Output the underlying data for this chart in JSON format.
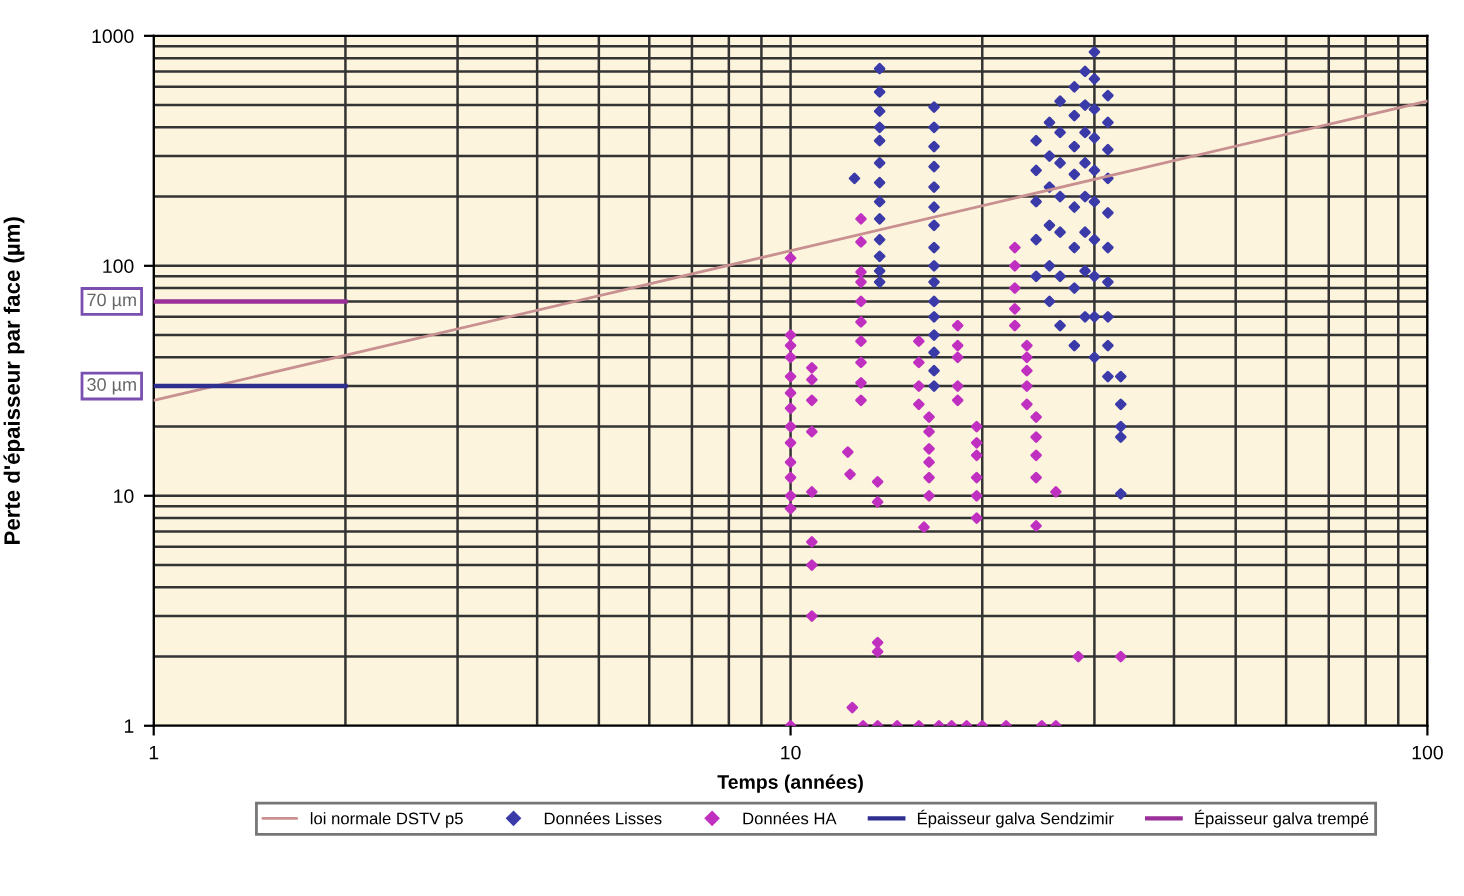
{
  "chart_data": {
    "type": "scatter",
    "xlabel": "Temps (années)",
    "ylabel": "Perte d'épaisseur par face (µm)",
    "log": "xy",
    "xlim": [
      1,
      100
    ],
    "ylim": [
      1,
      1000
    ],
    "xticks": [
      1,
      10,
      100
    ],
    "yticks": [
      1,
      10,
      100,
      1000
    ],
    "grid": true,
    "legend": "bottom",
    "annotations": [
      {
        "text": "70 µm",
        "x": 1,
        "y": 70
      },
      {
        "text": "30 µm",
        "x": 1,
        "y": 30
      }
    ],
    "series": [
      {
        "name": "loi normale DSTV p5",
        "type": "line",
        "color": "#c89090",
        "marker": "none",
        "x": [
          1,
          100
        ],
        "values": [
          26,
          520
        ]
      },
      {
        "name": "Données Lisses",
        "color": "#3a3aa8",
        "marker": "diamond",
        "x": [
          13.8,
          13.8,
          13.8,
          13.8,
          13.8,
          13.8,
          13.8,
          13.8,
          13.8,
          13.8,
          13.8,
          13.8,
          13.8,
          12.6,
          16.8,
          16.8,
          16.8,
          16.8,
          16.8,
          16.8,
          16.8,
          16.8,
          16.8,
          16.8,
          16.8,
          16.8,
          16.8,
          16.8,
          16.8,
          16.8,
          24.3,
          24.3,
          24.3,
          24.3,
          24.3,
          25.5,
          25.5,
          25.5,
          25.5,
          25.5,
          25.5,
          26.5,
          26.5,
          26.5,
          26.5,
          26.5,
          26.5,
          26.5,
          27.9,
          27.9,
          27.9,
          27.9,
          27.9,
          27.9,
          27.9,
          27.9,
          29,
          29,
          29,
          29,
          29,
          29,
          29,
          29,
          30,
          30,
          30,
          30,
          30,
          30,
          30,
          30,
          30,
          30,
          31.5,
          31.5,
          31.5,
          31.5,
          31.5,
          31.5,
          31.5,
          31.5,
          31.5,
          31.5,
          33,
          33,
          33,
          33,
          33
        ],
        "values": [
          720,
          570,
          470,
          400,
          350,
          280,
          230,
          190,
          160,
          130,
          110,
          95,
          85,
          240,
          490,
          400,
          330,
          270,
          220,
          180,
          150,
          120,
          100,
          85,
          70,
          60,
          50,
          42,
          35,
          30,
          350,
          260,
          190,
          130,
          90,
          420,
          300,
          220,
          150,
          100,
          70,
          520,
          380,
          280,
          200,
          140,
          90,
          55,
          600,
          450,
          330,
          250,
          180,
          120,
          80,
          45,
          700,
          500,
          380,
          280,
          200,
          140,
          95,
          60,
          850,
          650,
          480,
          360,
          260,
          190,
          130,
          90,
          60,
          40,
          550,
          420,
          320,
          240,
          170,
          120,
          85,
          60,
          45,
          33,
          33,
          25,
          20,
          18,
          10.2
        ]
      },
      {
        "name": "Données HA",
        "color": "#c030c0",
        "marker": "diamond",
        "x": [
          10,
          10,
          10,
          10,
          10,
          10,
          10,
          10,
          10,
          10,
          10,
          10,
          10,
          10,
          10.8,
          10.8,
          10.8,
          10.8,
          10.8,
          10.8,
          10.8,
          10.8,
          12.9,
          12.9,
          12.9,
          12.9,
          12.9,
          12.9,
          12.9,
          12.9,
          12.9,
          12.9,
          12.3,
          12.4,
          13.7,
          13.7,
          13.7,
          13.7,
          12.5,
          13,
          13.7,
          14.7,
          15.9,
          17.1,
          17.9,
          18.9,
          20,
          21.8,
          24.8,
          26.1,
          15.9,
          15.9,
          15.9,
          15.9,
          16.5,
          16.5,
          16.5,
          16.5,
          16.5,
          16.5,
          16.2,
          18.3,
          18.3,
          18.3,
          18.3,
          18.3,
          19.6,
          19.6,
          19.6,
          19.6,
          19.6,
          19.6,
          22.5,
          22.5,
          22.5,
          22.5,
          22.5,
          23.5,
          23.5,
          23.5,
          23.5,
          23.5,
          24.3,
          24.3,
          24.3,
          24.3,
          24.3,
          26.1,
          28.3,
          33
        ],
        "values": [
          108,
          50,
          45,
          40,
          33,
          28,
          24,
          20,
          17,
          14,
          12,
          10,
          8.8,
          1,
          36,
          32,
          26,
          19,
          10.4,
          6.3,
          5,
          3,
          160,
          127,
          94,
          85,
          70,
          57,
          47,
          38,
          31,
          26,
          15.5,
          12.4,
          11.5,
          9.4,
          2.3,
          2.1,
          1.2,
          1,
          1,
          1,
          1,
          1,
          1,
          1,
          1,
          1,
          1,
          1,
          47,
          38,
          30,
          25,
          22,
          19,
          16,
          14,
          12,
          10,
          7.3,
          55,
          45,
          40,
          30,
          26,
          20,
          17,
          15,
          12,
          10,
          8,
          120,
          100,
          80,
          65,
          55,
          45,
          40,
          35,
          30,
          25,
          22,
          18,
          15,
          12,
          7.4,
          10.4,
          2,
          2
        ]
      },
      {
        "name": "Épaisseur galva Sendzimir",
        "type": "line",
        "color": "#2f2f90",
        "marker": "none",
        "x": [
          1,
          2
        ],
        "values": [
          30,
          30
        ]
      },
      {
        "name": "Épaisseur galva trempé",
        "type": "line",
        "color": "#9a2f9a",
        "marker": "none",
        "x": [
          1,
          2
        ],
        "values": [
          70,
          70
        ]
      }
    ]
  }
}
